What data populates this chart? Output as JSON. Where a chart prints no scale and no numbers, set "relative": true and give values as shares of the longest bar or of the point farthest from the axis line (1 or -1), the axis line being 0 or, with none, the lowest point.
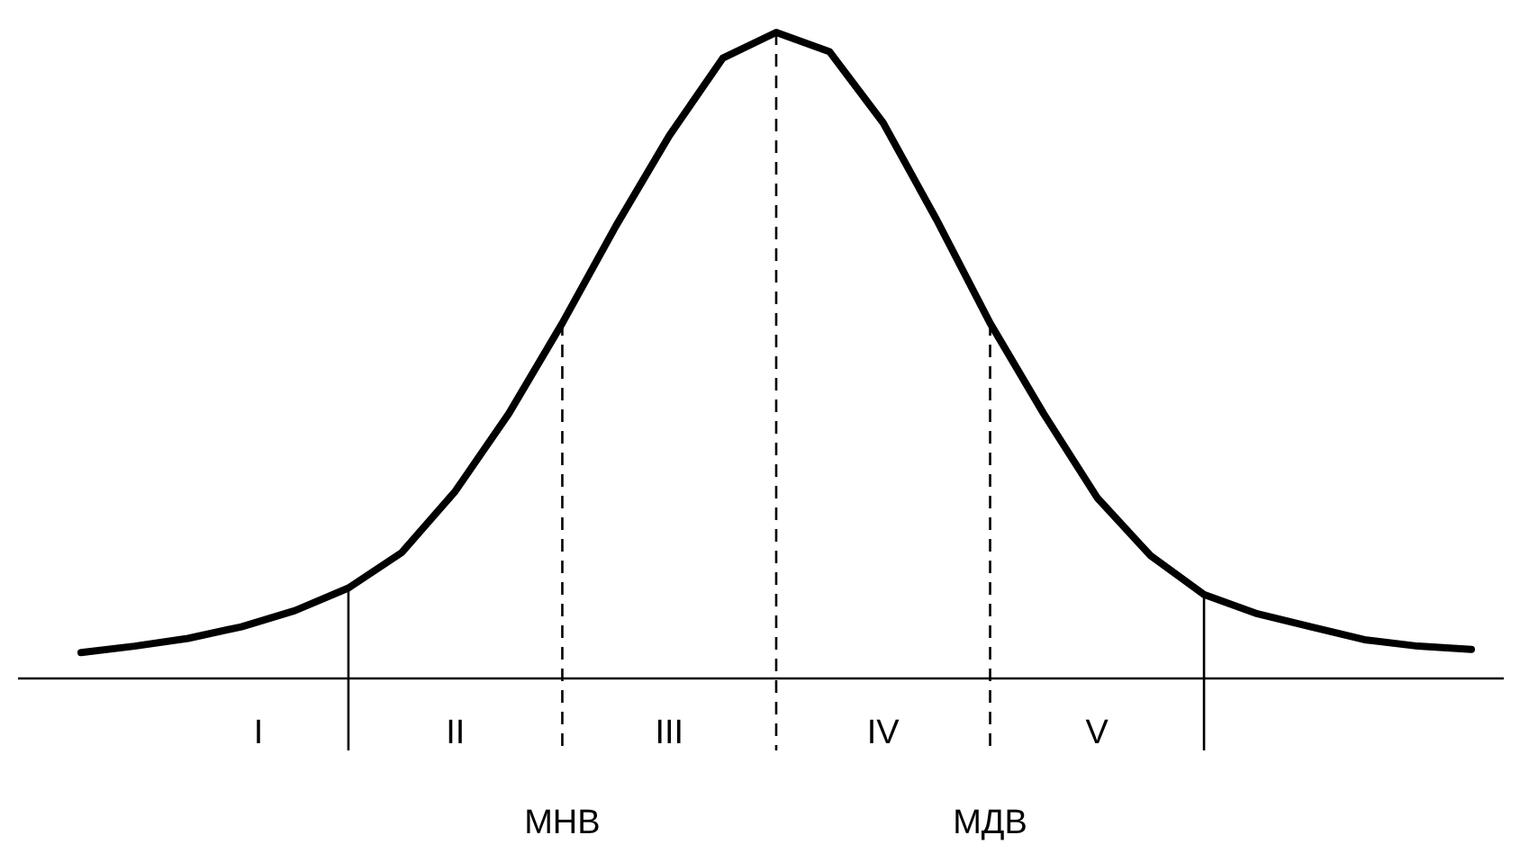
{
  "chart_data": {
    "type": "line",
    "relative": true,
    "color": "#000000",
    "line_style": "solid",
    "categories": [
      null,
      null,
      null,
      null,
      null,
      null,
      null,
      null,
      null,
      null,
      null,
      null,
      null,
      null,
      null,
      null,
      null,
      null,
      null,
      null,
      null,
      null,
      null,
      null,
      null,
      null,
      null
    ],
    "values": [
      0.04,
      0.05,
      0.062,
      0.08,
      0.105,
      0.14,
      0.195,
      0.29,
      0.41,
      0.55,
      0.7,
      0.84,
      0.96,
      1,
      0.97,
      0.86,
      0.71,
      0.55,
      0.41,
      0.28,
      0.19,
      0.13,
      0.1,
      0.08,
      0.06,
      0.05,
      0.045
    ],
    "annotations": [
      "I",
      "II",
      "III",
      "IV",
      "V",
      "МНВ",
      "МДВ"
    ]
  }
}
